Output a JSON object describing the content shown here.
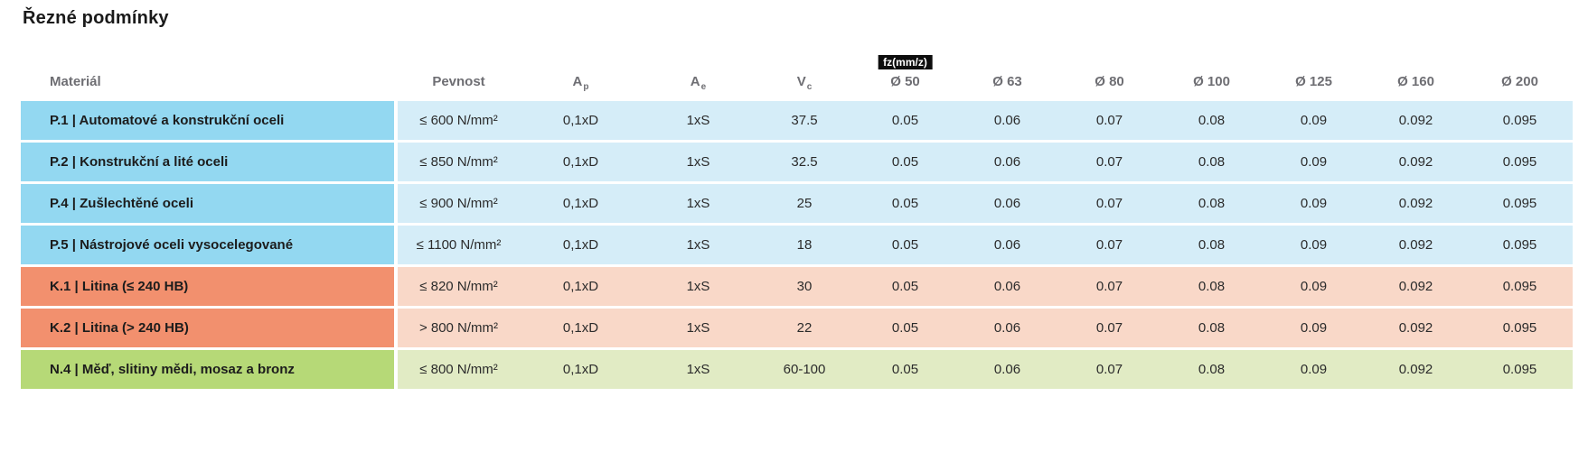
{
  "page": {
    "title": "Řezné podmínky"
  },
  "table": {
    "headers": {
      "material": "Materiál",
      "pevnost": "Pevnost",
      "ap": {
        "base": "A",
        "sub": "p"
      },
      "ae": {
        "base": "A",
        "sub": "e"
      },
      "vc": {
        "base": "V",
        "sub": "c"
      },
      "fz_badge": "fz(mm/z)",
      "diameters": [
        "Ø 50",
        "Ø 63",
        "Ø 80",
        "Ø 100",
        "Ø 125",
        "Ø 160",
        "Ø 200"
      ]
    },
    "group_colors": {
      "P": {
        "label_bg": "#93D8F1",
        "cell_bg": "#D5EDF8"
      },
      "K": {
        "label_bg": "#F2906E",
        "cell_bg": "#F9D8C8"
      },
      "N": {
        "label_bg": "#B6D977",
        "cell_bg": "#E1EBC4"
      }
    },
    "rows": [
      {
        "group": "P",
        "material": "P.1 | Automatové a konstrukční oceli",
        "pevnost": "≤ 600 N/mm²",
        "ap": "0,1xD",
        "ae": "1xS",
        "vc": "37.5",
        "fz": [
          "0.05",
          "0.06",
          "0.07",
          "0.08",
          "0.09",
          "0.092",
          "0.095"
        ]
      },
      {
        "group": "P",
        "material": "P.2 | Konstrukční a lité oceli",
        "pevnost": "≤ 850 N/mm²",
        "ap": "0,1xD",
        "ae": "1xS",
        "vc": "32.5",
        "fz": [
          "0.05",
          "0.06",
          "0.07",
          "0.08",
          "0.09",
          "0.092",
          "0.095"
        ]
      },
      {
        "group": "P",
        "material": "P.4 | Zušlechtěné oceli",
        "pevnost": "≤ 900 N/mm²",
        "ap": "0,1xD",
        "ae": "1xS",
        "vc": "25",
        "fz": [
          "0.05",
          "0.06",
          "0.07",
          "0.08",
          "0.09",
          "0.092",
          "0.095"
        ]
      },
      {
        "group": "P",
        "material": "P.5 | Nástrojové oceli vysocelegované",
        "pevnost": "≤ 1100 N/mm²",
        "ap": "0,1xD",
        "ae": "1xS",
        "vc": "18",
        "fz": [
          "0.05",
          "0.06",
          "0.07",
          "0.08",
          "0.09",
          "0.092",
          "0.095"
        ]
      },
      {
        "group": "K",
        "material": "K.1 | Litina (≤ 240 HB)",
        "pevnost": "≤ 820 N/mm²",
        "ap": "0,1xD",
        "ae": "1xS",
        "vc": "30",
        "fz": [
          "0.05",
          "0.06",
          "0.07",
          "0.08",
          "0.09",
          "0.092",
          "0.095"
        ]
      },
      {
        "group": "K",
        "material": "K.2 | Litina (> 240 HB)",
        "pevnost": "> 800 N/mm²",
        "ap": "0,1xD",
        "ae": "1xS",
        "vc": "22",
        "fz": [
          "0.05",
          "0.06",
          "0.07",
          "0.08",
          "0.09",
          "0.092",
          "0.095"
        ]
      },
      {
        "group": "N",
        "material": "N.4 | Měď, slitiny mědi, mosaz a bronz",
        "pevnost": "≤ 800 N/mm²",
        "ap": "0,1xD",
        "ae": "1xS",
        "vc": "60-100",
        "fz": [
          "0.05",
          "0.06",
          "0.07",
          "0.08",
          "0.09",
          "0.092",
          "0.095"
        ]
      }
    ]
  }
}
